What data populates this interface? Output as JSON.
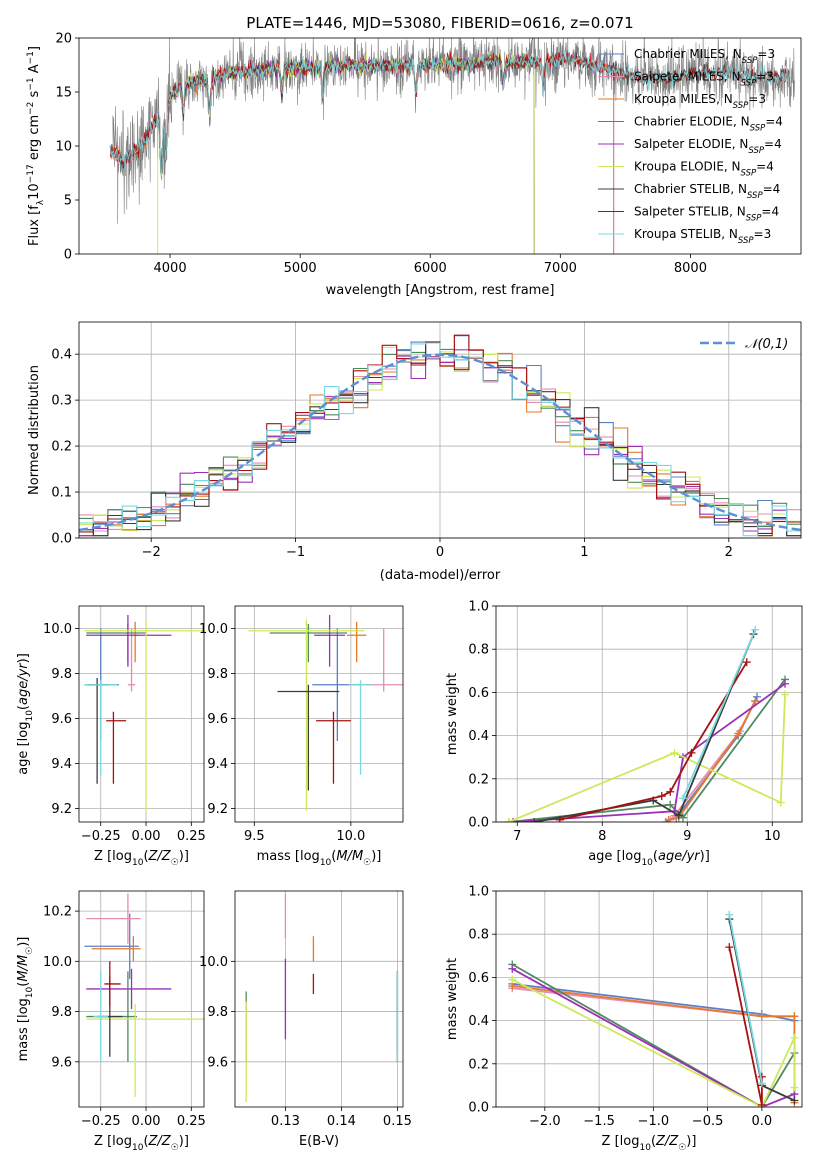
{
  "colors": {
    "Chabrier MILES": "#5b7fc7",
    "Salpeter MILES": "#e68cb1",
    "Kroupa MILES": "#e8782a",
    "Chabrier ELODIE": "#4f8a5f",
    "Salpeter ELODIE": "#9b30b5",
    "Kroupa ELODIE": "#cfe85a",
    "Chabrier STELIB": "#3d3d3d",
    "Salpeter STELIB": "#a51010",
    "Kroupa STELIB": "#79d9e0",
    "data": "#7f7f7f",
    "normal": "#5b8fd6"
  },
  "chart_data": [
    {
      "id": "spectrum",
      "type": "line",
      "title": "PLATE=1446, MJD=53080, FIBERID=0616, z=0.071",
      "xlabel": "wavelength [Angstrom, rest frame]",
      "ylabel": "Flux [f_λ10⁻¹⁷ erg cm⁻² s⁻¹ A⁻¹]",
      "xlim": [
        3300,
        8850
      ],
      "ylim": [
        0,
        20
      ],
      "xticks": [
        4000,
        5000,
        6000,
        7000,
        8000
      ],
      "yticks": [
        0,
        5,
        10,
        15,
        20
      ],
      "legend_position": "upper right",
      "legend": [
        {
          "name": "Chabrier MILES",
          "sub": "SSP",
          "n": "3"
        },
        {
          "name": "Salpeter MILES",
          "sub": "SSP",
          "n": "3"
        },
        {
          "name": "Kroupa MILES",
          "sub": "SSP",
          "n": "3"
        },
        {
          "name": "Chabrier ELODIE",
          "sub": "SSP",
          "n": "4"
        },
        {
          "name": "Salpeter ELODIE",
          "sub": "SSP",
          "n": "4"
        },
        {
          "name": "Kroupa ELODIE",
          "sub": "SSP",
          "n": "4"
        },
        {
          "name": "Chabrier STELIB",
          "sub": "SSP",
          "n": "4"
        },
        {
          "name": "Salpeter STELIB",
          "sub": "SSP",
          "n": "4"
        },
        {
          "name": "Kroupa STELIB",
          "sub": "SSP",
          "n": "3"
        }
      ],
      "continuum": [
        [
          3560,
          9.5
        ],
        [
          3650,
          8.5
        ],
        [
          3800,
          10.5
        ],
        [
          3900,
          12.5
        ],
        [
          4000,
          14.5
        ],
        [
          4100,
          15.8
        ],
        [
          4300,
          16.2
        ],
        [
          4500,
          16.8
        ],
        [
          4800,
          17.2
        ],
        [
          5000,
          17.2
        ],
        [
          5300,
          17.5
        ],
        [
          5600,
          17.4
        ],
        [
          5900,
          17.5
        ],
        [
          6200,
          17.6
        ],
        [
          6500,
          17.8
        ],
        [
          6800,
          17.8
        ],
        [
          7100,
          18.0
        ],
        [
          7400,
          17.0
        ],
        [
          7600,
          16.3
        ],
        [
          7800,
          16.2
        ],
        [
          8000,
          16.6
        ],
        [
          8300,
          16.8
        ],
        [
          8500,
          16.4
        ],
        [
          8800,
          16.3
        ]
      ],
      "absorption_features": [
        [
          3933,
          6.0
        ],
        [
          3968,
          5.0
        ],
        [
          4101,
          2.5
        ],
        [
          4304,
          3.0
        ],
        [
          4861,
          2.5
        ],
        [
          5175,
          3.0
        ],
        [
          5890,
          2.5
        ],
        [
          6563,
          2.0
        ],
        [
          6870,
          2.5
        ]
      ],
      "model_coverage": {
        "MILES": [
          3540,
          7410
        ],
        "ELODIE": [
          3900,
          6800
        ],
        "STELIB": [
          3540,
          8760
        ]
      },
      "data_coverage": [
        3560,
        8800
      ],
      "noise_level": 1.3
    },
    {
      "id": "residual-histogram",
      "type": "histogram",
      "xlabel": "(data-model)/error",
      "ylabel": "Normed distribution",
      "xlim": [
        -2.5,
        2.5
      ],
      "ylim": [
        0,
        0.47
      ],
      "xticks": [
        -2,
        -1,
        0,
        1,
        2
      ],
      "yticks": [
        0.0,
        0.1,
        0.2,
        0.3,
        0.4
      ],
      "bin_width": 0.1,
      "curve": {
        "name": "𝒩(0,1)",
        "mean": 0,
        "sigma": 1
      },
      "legend_position": "upper right"
    },
    {
      "id": "age-vs-Z",
      "type": "scatter",
      "xlabel": "Z [log₁₀(Z/Z☉)]",
      "ylabel": "age  [log₁₀(age/yr)]",
      "xlim": [
        -0.37,
        0.32
      ],
      "ylim": [
        9.14,
        10.1
      ],
      "xticks": [
        -0.25,
        0.0,
        0.25
      ],
      "yticks": [
        9.2,
        9.4,
        9.6,
        9.8,
        10.0
      ],
      "points": [
        {
          "model": "Chabrier MILES",
          "x": -0.25,
          "y": 9.75,
          "xerr": [
            0.09,
            0.1
          ],
          "yerr": [
            0.25,
            0.25
          ]
        },
        {
          "model": "Salpeter MILES",
          "x": -0.08,
          "y": 9.75,
          "xerr": [
            0.02,
            0.02
          ],
          "yerr": [
            0.03,
            0.25
          ]
        },
        {
          "model": "Kroupa MILES",
          "x": -0.06,
          "y": 9.97,
          "xerr": [
            0.02,
            0.02
          ],
          "yerr": [
            0.12,
            0.06
          ]
        },
        {
          "model": "Chabrier ELODIE",
          "x": -0.1,
          "y": 9.98,
          "xerr": [
            0.23,
            0.1
          ],
          "yerr": [
            0.13,
            0.04
          ]
        },
        {
          "model": "Salpeter ELODIE",
          "x": -0.1,
          "y": 9.97,
          "xerr": [
            0.23,
            0.24
          ],
          "yerr": [
            0.14,
            0.09
          ]
        },
        {
          "model": "Kroupa ELODIE",
          "x": 0.0,
          "y": 9.99,
          "xerr": [
            0.34,
            0.35
          ],
          "yerr": [
            0.8,
            0.05
          ]
        },
        {
          "model": "Chabrier STELIB",
          "x": -0.27,
          "y": 9.75,
          "xerr": [
            0.05,
            0.07
          ],
          "yerr": [
            0.44,
            0.03
          ]
        },
        {
          "model": "Salpeter STELIB",
          "x": -0.18,
          "y": 9.59,
          "xerr": [
            0.04,
            0.07
          ],
          "yerr": [
            0.28,
            0.04
          ]
        },
        {
          "model": "Kroupa STELIB",
          "x": -0.25,
          "y": 9.75,
          "xerr": [
            0.09,
            0.09
          ],
          "yerr": [
            0.4,
            0.02
          ]
        }
      ]
    },
    {
      "id": "age-vs-mass",
      "type": "scatter",
      "xlabel": "mass [log₁₀(M/M☉)]",
      "ylabel": "",
      "xlim": [
        9.4,
        10.27
      ],
      "ylim": [
        9.14,
        10.1
      ],
      "xticks": [
        9.5,
        10.0
      ],
      "yticks": [
        9.2,
        9.4,
        9.6,
        9.8,
        10.0
      ],
      "points": [
        {
          "model": "Chabrier MILES",
          "x": 9.93,
          "y": 9.75,
          "xerr": [
            0.13,
            0.13
          ],
          "yerr": [
            0.25,
            0.25
          ]
        },
        {
          "model": "Salpeter MILES",
          "x": 10.17,
          "y": 9.75,
          "xerr": [
            0.1,
            0.1
          ],
          "yerr": [
            0.03,
            0.25
          ]
        },
        {
          "model": "Kroupa MILES",
          "x": 10.03,
          "y": 9.97,
          "xerr": [
            0.05,
            0.05
          ],
          "yerr": [
            0.12,
            0.06
          ]
        },
        {
          "model": "Chabrier ELODIE",
          "x": 9.78,
          "y": 9.98,
          "xerr": [
            0.2,
            0.2
          ],
          "yerr": [
            0.13,
            0.04
          ]
        },
        {
          "model": "Salpeter ELODIE",
          "x": 9.89,
          "y": 9.97,
          "xerr": [
            0.08,
            0.08
          ],
          "yerr": [
            0.14,
            0.09
          ]
        },
        {
          "model": "Kroupa ELODIE",
          "x": 9.77,
          "y": 9.99,
          "xerr": [
            0.3,
            0.3
          ],
          "yerr": [
            0.8,
            0.05
          ]
        },
        {
          "model": "Chabrier STELIB",
          "x": 9.78,
          "y": 9.72,
          "xerr": [
            0.16,
            0.16
          ],
          "yerr": [
            0.44,
            0.03
          ]
        },
        {
          "model": "Salpeter STELIB",
          "x": 9.91,
          "y": 9.59,
          "xerr": [
            0.09,
            0.09
          ],
          "yerr": [
            0.28,
            0.04
          ]
        },
        {
          "model": "Kroupa STELIB",
          "x": 10.05,
          "y": 9.75,
          "xerr": [
            0.06,
            0.06
          ],
          "yerr": [
            0.4,
            0.02
          ]
        }
      ]
    },
    {
      "id": "weight-vs-age",
      "type": "line",
      "xlabel": "age  [log₁₀(age/yr)]",
      "ylabel": "mass weight",
      "xlim": [
        6.75,
        10.35
      ],
      "ylim": [
        0,
        1.0
      ],
      "xticks": [
        7,
        8,
        9,
        10
      ],
      "yticks": [
        0.0,
        0.2,
        0.4,
        0.6,
        0.8,
        1.0
      ],
      "series": [
        {
          "model": "Chabrier MILES",
          "x": [
            8.75,
            8.87,
            9.6,
            9.82
          ],
          "y": [
            0.0,
            0.02,
            0.4,
            0.58
          ]
        },
        {
          "model": "Salpeter MILES",
          "x": [
            8.8,
            8.85,
            9.62,
            9.8
          ],
          "y": [
            0.01,
            0.03,
            0.42,
            0.56
          ]
        },
        {
          "model": "Kroupa MILES",
          "x": [
            8.78,
            8.9,
            9.6,
            9.8
          ],
          "y": [
            0.01,
            0.02,
            0.41,
            0.56
          ]
        },
        {
          "model": "Chabrier ELODIE",
          "x": [
            6.9,
            8.8,
            8.95,
            10.15
          ],
          "y": [
            0.0,
            0.08,
            0.02,
            0.66
          ]
        },
        {
          "model": "Salpeter ELODIE",
          "x": [
            6.95,
            8.85,
            8.95,
            10.15
          ],
          "y": [
            0.0,
            0.05,
            0.3,
            0.64
          ]
        },
        {
          "model": "Kroupa ELODIE",
          "x": [
            6.9,
            8.85,
            10.1,
            10.15
          ],
          "y": [
            0.0,
            0.32,
            0.09,
            0.59
          ]
        },
        {
          "model": "Chabrier STELIB",
          "x": [
            7.2,
            8.6,
            8.9,
            9.78
          ],
          "y": [
            0.0,
            0.1,
            0.03,
            0.87
          ]
        },
        {
          "model": "Salpeter STELIB",
          "x": [
            7.5,
            8.7,
            8.8,
            9.05,
            9.7
          ],
          "y": [
            0.01,
            0.12,
            0.14,
            0.32,
            0.74
          ]
        },
        {
          "model": "Kroupa STELIB",
          "x": [
            8.95,
            9.8
          ],
          "y": [
            0.11,
            0.89
          ]
        }
      ]
    },
    {
      "id": "mass-vs-Z",
      "type": "scatter",
      "xlabel": "Z [log₁₀(Z/Z☉)]",
      "ylabel": "mass [log₁₀(M/M☉)]",
      "xlim": [
        -0.37,
        0.32
      ],
      "ylim": [
        9.42,
        10.28
      ],
      "xticks": [
        -0.25,
        0.0,
        0.25
      ],
      "yticks": [
        9.6,
        9.8,
        10.0,
        10.2
      ],
      "points": [
        {
          "model": "Chabrier MILES",
          "x": -0.09,
          "y": 10.06,
          "xerr": [
            0.25,
            0.05
          ],
          "yerr": [
            0.13,
            0.13
          ]
        },
        {
          "model": "Salpeter MILES",
          "x": -0.1,
          "y": 10.17,
          "xerr": [
            0.23,
            0.07
          ],
          "yerr": [
            0.1,
            0.1
          ]
        },
        {
          "model": "Kroupa MILES",
          "x": -0.07,
          "y": 10.05,
          "xerr": [
            0.23,
            0.04
          ],
          "yerr": [
            0.05,
            0.05
          ]
        },
        {
          "model": "Chabrier ELODIE",
          "x": -0.1,
          "y": 9.78,
          "xerr": [
            0.23,
            0.05
          ],
          "yerr": [
            0.18,
            0.18
          ]
        },
        {
          "model": "Salpeter ELODIE",
          "x": -0.08,
          "y": 9.89,
          "xerr": [
            0.25,
            0.22
          ],
          "yerr": [
            0.08,
            0.08
          ]
        },
        {
          "model": "Kroupa ELODIE",
          "x": -0.06,
          "y": 9.77,
          "xerr": [
            0.27,
            0.38
          ],
          "yerr": [
            0.31,
            0.06
          ]
        },
        {
          "model": "Chabrier STELIB",
          "x": -0.2,
          "y": 9.78,
          "xerr": [
            0.07,
            0.07
          ],
          "yerr": [
            0.16,
            0.16
          ]
        },
        {
          "model": "Salpeter STELIB",
          "x": -0.2,
          "y": 9.91,
          "xerr": [
            0.03,
            0.06
          ],
          "yerr": [
            0.09,
            0.09
          ]
        },
        {
          "model": "Kroupa STELIB",
          "x": -0.25,
          "y": 9.78,
          "xerr": [
            0.04,
            0.04
          ],
          "yerr": [
            0.18,
            0.18
          ]
        }
      ]
    },
    {
      "id": "mass-vs-ebv",
      "type": "scatter",
      "xlabel": "E(B-V)",
      "ylabel": "",
      "xlim": [
        0.121,
        0.151
      ],
      "ylim": [
        9.42,
        10.28
      ],
      "xticks": [
        0.13,
        0.14,
        0.15
      ],
      "yticks": [
        9.6,
        9.8,
        10.0
      ],
      "points": [
        {
          "model": "Chabrier MILES",
          "x": 0.15,
          "y": 9.8,
          "xerr": [
            0,
            0
          ],
          "yerr": [
            0.16,
            0.16
          ]
        },
        {
          "model": "Salpeter MILES",
          "x": 0.13,
          "y": 10.17,
          "xerr": [
            0,
            0
          ],
          "yerr": [
            0.08,
            0.1
          ]
        },
        {
          "model": "Kroupa MILES",
          "x": 0.135,
          "y": 10.05,
          "xerr": [
            0,
            0
          ],
          "yerr": [
            0.05,
            0.05
          ]
        },
        {
          "model": "Chabrier ELODIE",
          "x": 0.123,
          "y": 9.78,
          "xerr": [
            0,
            0
          ],
          "yerr": [
            0.18,
            0.1
          ]
        },
        {
          "model": "Salpeter ELODIE",
          "x": 0.13,
          "y": 9.89,
          "xerr": [
            0,
            0
          ],
          "yerr": [
            0.2,
            0.12
          ]
        },
        {
          "model": "Kroupa ELODIE",
          "x": 0.123,
          "y": 9.64,
          "xerr": [
            0,
            0
          ],
          "yerr": [
            0.2,
            0.2
          ]
        },
        {
          "model": "Chabrier STELIB",
          "x": 0.15,
          "y": 9.78,
          "xerr": [
            0,
            0
          ],
          "yerr": [
            0.18,
            0.18
          ]
        },
        {
          "model": "Salpeter STELIB",
          "x": 0.135,
          "y": 9.91,
          "xerr": [
            0,
            0
          ],
          "yerr": [
            0.04,
            0.04
          ]
        },
        {
          "model": "Kroupa STELIB",
          "x": 0.15,
          "y": 9.78,
          "xerr": [
            0,
            0
          ],
          "yerr": [
            0.18,
            0.18
          ]
        }
      ]
    },
    {
      "id": "weight-vs-Z",
      "type": "line",
      "xlabel": "Z [log₁₀(Z/Z☉)]",
      "ylabel": "mass weight",
      "xlim": [
        -2.45,
        0.37
      ],
      "ylim": [
        0,
        1.0
      ],
      "xticks": [
        -2.0,
        -1.5,
        -1.0,
        -0.5,
        0.0
      ],
      "yticks": [
        0.0,
        0.2,
        0.4,
        0.6,
        0.8,
        1.0
      ],
      "series": [
        {
          "model": "Chabrier MILES",
          "x": [
            -2.3,
            0.0,
            0.3
          ],
          "y": [
            0.57,
            0.43,
            0.4
          ]
        },
        {
          "model": "Salpeter MILES",
          "x": [
            -2.3,
            0.0,
            0.3
          ],
          "y": [
            0.55,
            0.42,
            0.42
          ]
        },
        {
          "model": "Kroupa MILES",
          "x": [
            -2.3,
            0.0,
            0.3,
            0.3
          ],
          "y": [
            0.56,
            0.42,
            0.42,
            0.02
          ]
        },
        {
          "model": "Chabrier ELODIE",
          "x": [
            -2.3,
            0.0,
            0.3
          ],
          "y": [
            0.66,
            0.0,
            0.25
          ]
        },
        {
          "model": "Salpeter ELODIE",
          "x": [
            -2.3,
            0.0,
            0.3
          ],
          "y": [
            0.64,
            0.0,
            0.06
          ]
        },
        {
          "model": "Kroupa ELODIE",
          "x": [
            -2.3,
            0.0,
            0.3,
            0.3
          ],
          "y": [
            0.59,
            0.0,
            0.32,
            0.09
          ]
        },
        {
          "model": "Chabrier STELIB",
          "x": [
            -0.3,
            0.0,
            0.3
          ],
          "y": [
            0.87,
            0.1,
            0.03
          ]
        },
        {
          "model": "Salpeter STELIB",
          "x": [
            -0.3,
            0.0,
            0.0
          ],
          "y": [
            0.74,
            0.01,
            0.14
          ]
        },
        {
          "model": "Kroupa STELIB",
          "x": [
            -0.3,
            0.0
          ],
          "y": [
            0.89,
            0.11
          ]
        }
      ]
    }
  ]
}
